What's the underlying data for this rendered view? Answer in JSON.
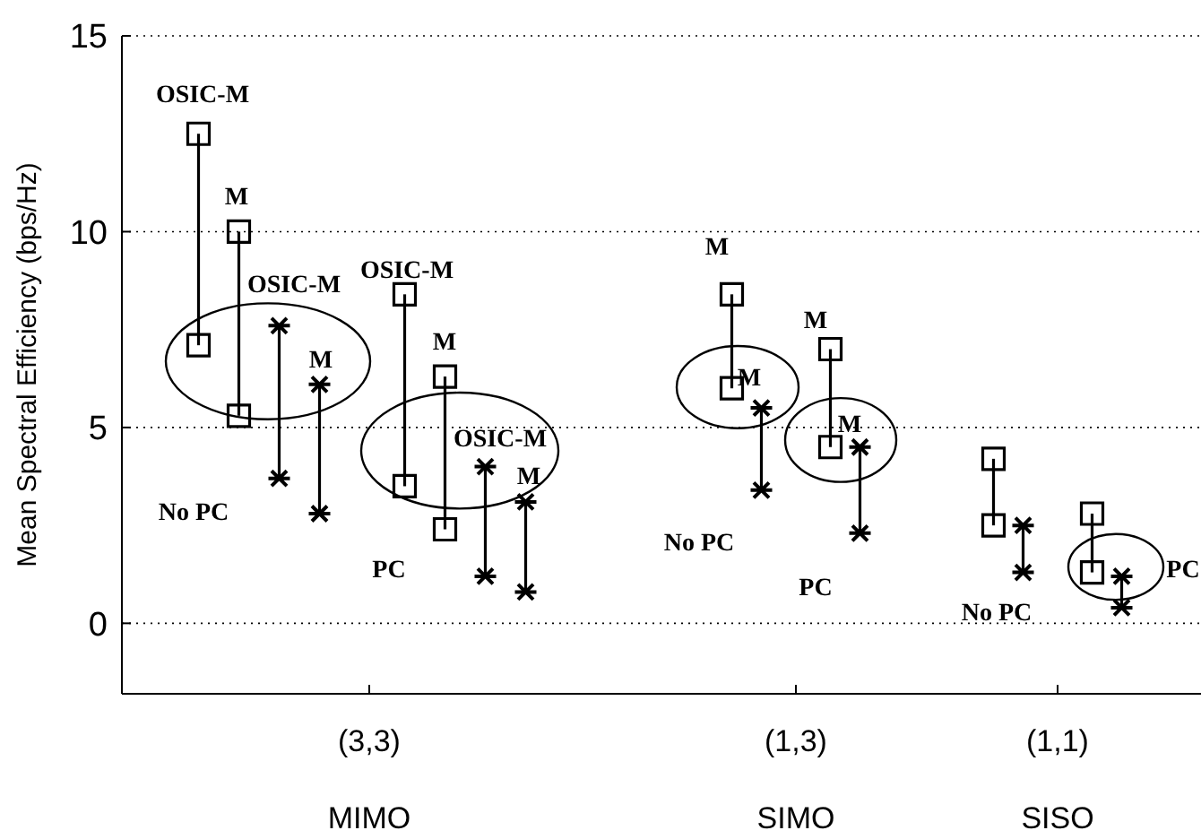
{
  "chart_data": {
    "type": "bar",
    "ylabel": "Mean Spectral Efficiency (bps/Hz)",
    "categories": [
      "(3,3)",
      "(1,3)",
      "(1,1)"
    ],
    "ylim": [
      -1.8,
      15
    ],
    "yticks": [
      0,
      5,
      10,
      15
    ],
    "grid": "y",
    "series": [
      {
        "color": "#000000",
        "base": [
          7.1,
          null,
          null
        ],
        "values": [
          5.4,
          null,
          null
        ]
      },
      {
        "color": "#000000",
        "base": [
          5.3,
          6,
          2.5
        ],
        "values": [
          4.7,
          2.4,
          1.7
        ]
      },
      {
        "color": "#000000",
        "base": [
          3.7,
          null,
          null
        ],
        "values": [
          3.9,
          null,
          null
        ]
      },
      {
        "color": "#000000",
        "base": [
          2.8,
          3.4,
          1.3
        ],
        "values": [
          3.3,
          2.1,
          1.2
        ]
      },
      {
        "color": "#000000",
        "base": [
          3.5,
          null,
          null
        ],
        "values": [
          4.9,
          null,
          null
        ]
      },
      {
        "color": "#000000",
        "base": [
          2.4,
          4.5,
          1.3
        ],
        "values": [
          3.9,
          2.5,
          1.5
        ]
      },
      {
        "color": "#000000",
        "base": [
          1.2,
          null,
          null
        ],
        "values": [
          2.8,
          null,
          null
        ]
      },
      {
        "color": "#000000",
        "base": [
          0.8,
          2.3,
          0.4
        ],
        "values": [
          2.3,
          2.2,
          0.8
        ]
      },
      {
        "type": "scatter",
        "color": "#000000",
        "marker": "square",
        "values": [
          12.5,
          null,
          null
        ]
      },
      {
        "type": "scatter",
        "color": "#000000",
        "marker": "square",
        "values": [
          7.1,
          null,
          null
        ]
      },
      {
        "type": "scatter",
        "color": "#000000",
        "marker": "square",
        "values": [
          10,
          8.4,
          4.2
        ]
      },
      {
        "type": "scatter",
        "color": "#000000",
        "marker": "square",
        "values": [
          5.3,
          6,
          2.5
        ]
      },
      {
        "type": "scatter",
        "color": "#000000",
        "marker": "cross",
        "values": [
          7.6,
          null,
          null
        ]
      },
      {
        "type": "scatter",
        "color": "#000000",
        "marker": "cross",
        "values": [
          3.7,
          null,
          null
        ]
      },
      {
        "type": "scatter",
        "color": "#000000",
        "marker": "cross",
        "values": [
          6.1,
          5.5,
          2.5
        ]
      },
      {
        "type": "scatter",
        "color": "#000000",
        "marker": "cross",
        "values": [
          2.8,
          3.4,
          1.3
        ]
      },
      {
        "type": "scatter",
        "color": "#000000",
        "marker": "square",
        "values": [
          8.4,
          null,
          null
        ]
      },
      {
        "type": "scatter",
        "color": "#000000",
        "marker": "square",
        "values": [
          3.5,
          null,
          null
        ]
      },
      {
        "type": "scatter",
        "color": "#000000",
        "marker": "square",
        "values": [
          6.3,
          7,
          2.8
        ]
      },
      {
        "type": "scatter",
        "color": "#000000",
        "marker": "square",
        "values": [
          2.4,
          4.5,
          1.3
        ]
      },
      {
        "type": "scatter",
        "color": "#000000",
        "marker": "cross",
        "values": [
          4,
          null,
          null
        ]
      },
      {
        "type": "scatter",
        "color": "#000000",
        "marker": "cross",
        "values": [
          1.2,
          null,
          null
        ]
      },
      {
        "type": "scatter",
        "color": "#000000",
        "marker": "cross",
        "values": [
          3.1,
          4.5,
          1.2
        ]
      },
      {
        "type": "scatter",
        "color": "#000000",
        "marker": "cross",
        "values": [
          0.8,
          2.3,
          0.4
        ]
      }
    ],
    "annotations": [
      "OSIC-M",
      "M",
      "OSIC-M",
      "M",
      "No PC",
      "OSIC-M",
      "M",
      "OSIC-M",
      "M",
      "PC",
      "M",
      "M",
      "No PC",
      "M",
      "M",
      "PC",
      "No PC",
      "PC",
      "MIMO",
      "SIMO",
      "SISO"
    ]
  }
}
